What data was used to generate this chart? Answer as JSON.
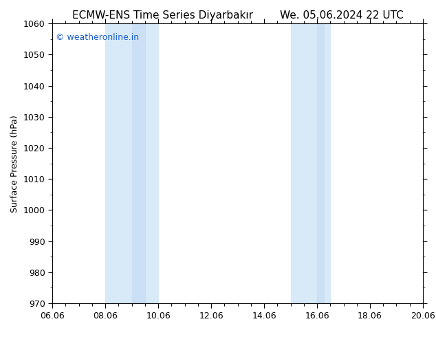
{
  "title": "ECMW-ENS Time Series Diyarbakır        We. 05.06.2024 22 UTC",
  "ylabel": "Surface Pressure (hPa)",
  "xlabel": "",
  "ylim": [
    970,
    1060
  ],
  "yticks": [
    970,
    980,
    990,
    1000,
    1010,
    1020,
    1030,
    1040,
    1050,
    1060
  ],
  "xlim": [
    6.06,
    20.06
  ],
  "xticks": [
    6.06,
    8.06,
    10.06,
    12.06,
    14.06,
    16.06,
    18.06,
    20.06
  ],
  "xticklabels": [
    "06.06",
    "08.06",
    "10.06",
    "12.06",
    "14.06",
    "16.06",
    "18.06",
    "20.06"
  ],
  "shade_regions": [
    {
      "xmin": 8.06,
      "xmax": 9.06
    },
    {
      "xmin": 9.06,
      "xmax": 10.06
    },
    {
      "xmin": 15.06,
      "xmax": 16.06
    },
    {
      "xmin": 16.06,
      "xmax": 16.56
    }
  ],
  "shade_colors": [
    "#d0e4f5",
    "#dceef8",
    "#d0e4f5",
    "#dceef8"
  ],
  "background_color": "#ffffff",
  "watermark_text": "© weatheronline.in",
  "watermark_color": "#1a5fc8",
  "title_fontsize": 11,
  "axis_fontsize": 9,
  "tick_fontsize": 9,
  "watermark_fontsize": 9,
  "border_color": "#000000"
}
